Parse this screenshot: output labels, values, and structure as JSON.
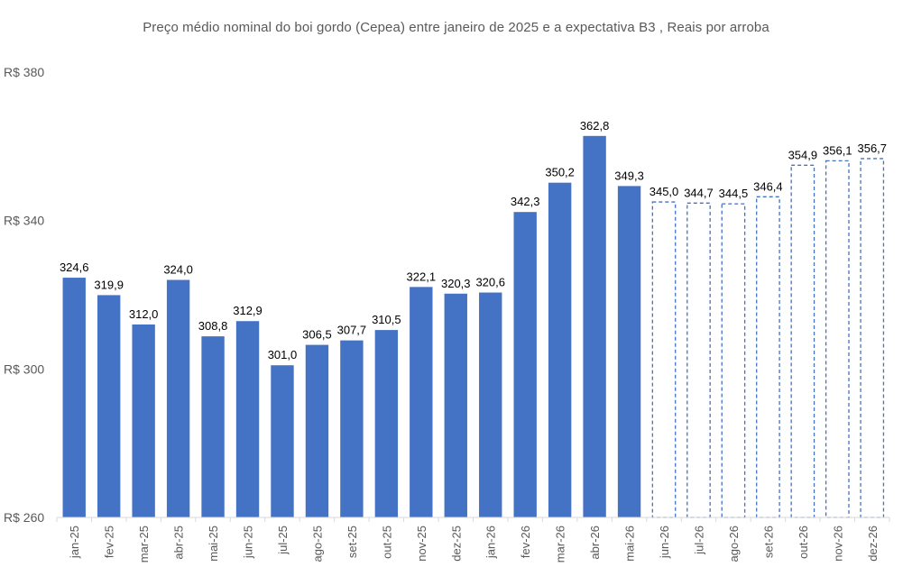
{
  "chart_data": {
    "type": "bar",
    "title": "Preço médio nominal do boi gordo (Cepea) entre janeiro de 2025 e a expectativa B3 , Reais por arroba",
    "xlabel": "",
    "ylabel": "",
    "ylim": [
      260,
      380
    ],
    "yticks": [
      260,
      300,
      340,
      380
    ],
    "ytick_labels": [
      "R$ 260",
      "R$ 300",
      "R$ 340",
      "R$ 380"
    ],
    "grid": false,
    "legend": "none",
    "categories": [
      "jan-25",
      "fev-25",
      "mar-25",
      "abr-25",
      "mai-25",
      "jun-25",
      "jul-25",
      "ago-25",
      "set-25",
      "out-25",
      "nov-25",
      "dez-25",
      "jan-26",
      "fev-26",
      "mar-26",
      "abr-26",
      "mai-26",
      "jun-26",
      "jul-26",
      "ago-26",
      "set-26",
      "out-26",
      "nov-26",
      "dez-26"
    ],
    "values": [
      324.6,
      319.9,
      312.0,
      324.0,
      308.8,
      312.9,
      301.0,
      306.5,
      307.7,
      310.5,
      322.1,
      320.3,
      320.6,
      342.3,
      350.2,
      362.8,
      349.3,
      345.0,
      344.7,
      344.5,
      346.4,
      354.9,
      356.1,
      356.7
    ],
    "data_labels": [
      "324,6",
      "319,9",
      "312,0",
      "324,0",
      "308,8",
      "312,9",
      "301,0",
      "306,5",
      "307,7",
      "310,5",
      "322,1",
      "320,3",
      "320,6",
      "342,3",
      "350,2",
      "362,8",
      "349,3",
      "345,0",
      "344,7",
      "344,5",
      "346,4",
      "354,9",
      "356,1",
      "356,7"
    ],
    "bar_styles": [
      "solid",
      "solid",
      "solid",
      "solid",
      "solid",
      "solid",
      "solid",
      "solid",
      "solid",
      "solid",
      "solid",
      "solid",
      "solid",
      "solid",
      "solid",
      "solid",
      "solid",
      "dashed",
      "dashed",
      "dashed",
      "dashed",
      "dashed",
      "dashed",
      "dashed"
    ],
    "colors": {
      "bar_fill": "#4472c4",
      "projection_stroke": "#4472c4",
      "axis_line": "#d9d9d9",
      "tick_text": "#595959",
      "label_text": "#000000"
    }
  }
}
